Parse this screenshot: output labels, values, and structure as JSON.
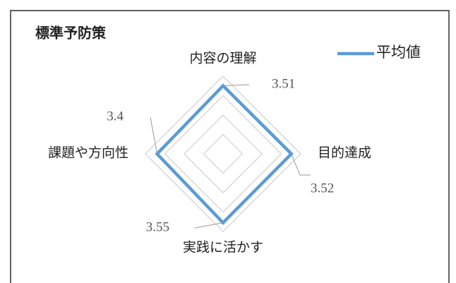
{
  "chart_data": {
    "type": "radar",
    "title": "標準予防策",
    "categories": [
      "内容の理解",
      "目的達成",
      "実践に活かす",
      "課題や方向性"
    ],
    "series": [
      {
        "name": "平均値",
        "color": "#5b9bd5",
        "values": [
          3.51,
          3.52,
          3.55,
          3.4
        ]
      }
    ],
    "ylim": [
      0,
      4
    ],
    "yticks": [
      0,
      1,
      2,
      3,
      4
    ],
    "grid": true,
    "legend": "top-right"
  }
}
